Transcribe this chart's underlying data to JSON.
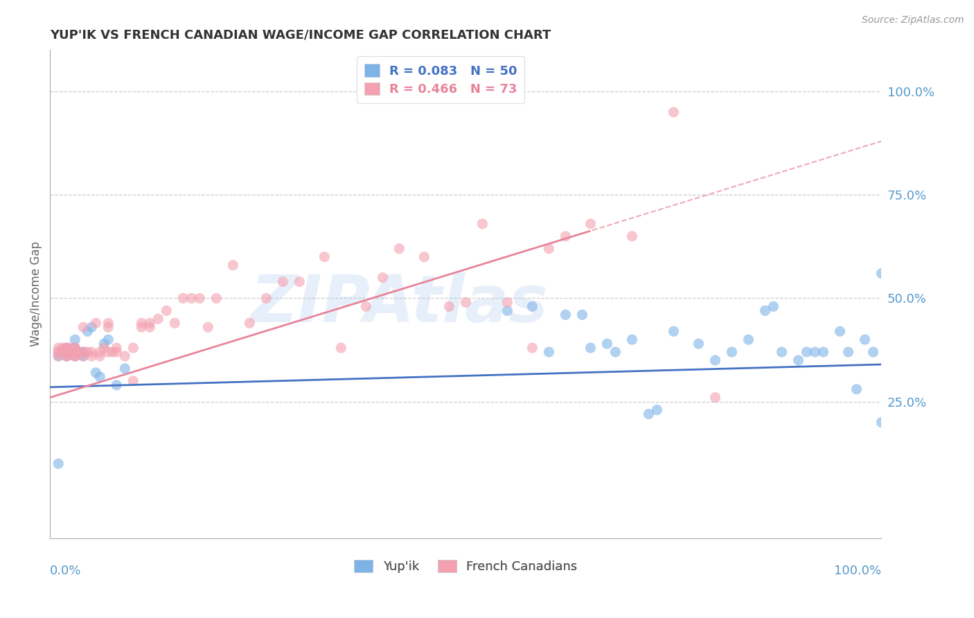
{
  "title": "YUP'IK VS FRENCH CANADIAN WAGE/INCOME GAP CORRELATION CHART",
  "source": "Source: ZipAtlas.com",
  "ylabel": "Wage/Income Gap",
  "ytick_labels": [
    "25.0%",
    "50.0%",
    "75.0%",
    "100.0%"
  ],
  "ytick_values": [
    0.25,
    0.5,
    0.75,
    1.0
  ],
  "xlim": [
    0.0,
    1.0
  ],
  "ylim": [
    -0.08,
    1.1
  ],
  "legend_blue_label": "R = 0.083   N = 50",
  "legend_pink_label": "R = 0.466   N = 73",
  "blue_color": "#7EB3E8",
  "pink_color": "#F4A0B0",
  "trend_blue_color": "#4472C4",
  "trend_pink_color": "#E8849A",
  "watermark_text": "ZIPAtlas",
  "watermark_color": "#AACCEE",
  "watermark_alpha": 0.28,
  "grid_color": "#CCCCCC",
  "axis_color": "#AAAAAA",
  "tick_label_color": "#5599CC",
  "ylabel_color": "#666666",
  "title_color": "#333333",
  "blue_scatter_x": [
    0.01,
    0.01,
    0.015,
    0.02,
    0.02,
    0.025,
    0.03,
    0.03,
    0.03,
    0.035,
    0.04,
    0.04,
    0.045,
    0.05,
    0.055,
    0.06,
    0.065,
    0.07,
    0.08,
    0.09,
    0.55,
    0.58,
    0.6,
    0.62,
    0.64,
    0.65,
    0.67,
    0.68,
    0.7,
    0.72,
    0.73,
    0.75,
    0.78,
    0.8,
    0.82,
    0.84,
    0.86,
    0.87,
    0.88,
    0.9,
    0.91,
    0.92,
    0.93,
    0.95,
    0.96,
    0.97,
    0.98,
    0.99,
    1.0,
    1.0
  ],
  "blue_scatter_y": [
    0.36,
    0.1,
    0.37,
    0.38,
    0.36,
    0.37,
    0.38,
    0.36,
    0.4,
    0.37,
    0.36,
    0.37,
    0.42,
    0.43,
    0.32,
    0.31,
    0.39,
    0.4,
    0.29,
    0.33,
    0.47,
    0.48,
    0.37,
    0.46,
    0.46,
    0.38,
    0.39,
    0.37,
    0.4,
    0.22,
    0.23,
    0.42,
    0.39,
    0.35,
    0.37,
    0.4,
    0.47,
    0.48,
    0.37,
    0.35,
    0.37,
    0.37,
    0.37,
    0.42,
    0.37,
    0.28,
    0.4,
    0.37,
    0.2,
    0.56
  ],
  "pink_scatter_x": [
    0.01,
    0.01,
    0.01,
    0.01,
    0.015,
    0.02,
    0.02,
    0.02,
    0.02,
    0.02,
    0.02,
    0.02,
    0.025,
    0.03,
    0.03,
    0.03,
    0.03,
    0.03,
    0.03,
    0.035,
    0.04,
    0.04,
    0.04,
    0.045,
    0.05,
    0.05,
    0.055,
    0.06,
    0.06,
    0.065,
    0.07,
    0.07,
    0.07,
    0.075,
    0.08,
    0.08,
    0.09,
    0.1,
    0.1,
    0.11,
    0.11,
    0.12,
    0.12,
    0.13,
    0.14,
    0.15,
    0.16,
    0.17,
    0.18,
    0.19,
    0.2,
    0.22,
    0.24,
    0.26,
    0.28,
    0.3,
    0.33,
    0.35,
    0.38,
    0.4,
    0.42,
    0.45,
    0.48,
    0.5,
    0.52,
    0.55,
    0.58,
    0.6,
    0.62,
    0.65,
    0.7,
    0.75,
    0.8
  ],
  "pink_scatter_y": [
    0.37,
    0.38,
    0.36,
    0.37,
    0.38,
    0.36,
    0.37,
    0.38,
    0.36,
    0.37,
    0.38,
    0.37,
    0.38,
    0.36,
    0.37,
    0.38,
    0.36,
    0.37,
    0.38,
    0.37,
    0.36,
    0.37,
    0.43,
    0.37,
    0.37,
    0.36,
    0.44,
    0.36,
    0.37,
    0.38,
    0.37,
    0.44,
    0.43,
    0.37,
    0.37,
    0.38,
    0.36,
    0.3,
    0.38,
    0.44,
    0.43,
    0.44,
    0.43,
    0.45,
    0.47,
    0.44,
    0.5,
    0.5,
    0.5,
    0.43,
    0.5,
    0.58,
    0.44,
    0.5,
    0.54,
    0.54,
    0.6,
    0.38,
    0.48,
    0.55,
    0.62,
    0.6,
    0.48,
    0.49,
    0.68,
    0.49,
    0.38,
    0.62,
    0.65,
    0.68,
    0.65,
    0.95,
    0.26
  ],
  "pink_trend_solid_end": 0.65,
  "blue_trend_intercept": 0.285,
  "blue_trend_slope": 0.055,
  "pink_trend_intercept": 0.26,
  "pink_trend_slope": 0.62
}
